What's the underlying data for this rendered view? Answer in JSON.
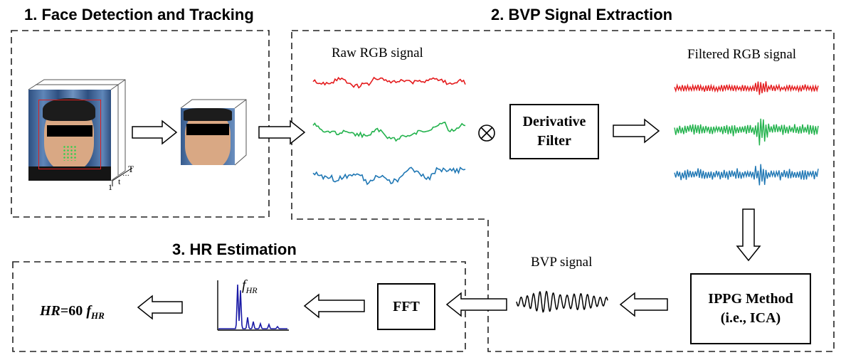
{
  "sections": {
    "face_detection": "1. Face Detection and Tracking",
    "bvp_extraction": "2. BVP Signal Extraction",
    "hr_estimation": "3. HR Estimation"
  },
  "labels": {
    "raw_rgb": "Raw RGB signal",
    "filtered_rgb": "Filtered RGB signal",
    "bvp_signal": "BVP signal",
    "f_hr_main": "f",
    "f_hr_sub": "HR",
    "hr_formula_prefix": "HR",
    "hr_formula_mid": "=60 ",
    "hr_formula_f": "f",
    "hr_formula_sub": "HR",
    "axis_1": "1",
    "axis_t": "t",
    "axis_dots": "···",
    "axis_T": "T"
  },
  "boxes": {
    "derivative_line1": "Derivative",
    "derivative_line2": "Filter",
    "fft": "FFT",
    "ippg_line1": "IPPG Method",
    "ippg_line2": "(i.e., ICA)"
  },
  "colors": {
    "red": "#e41a1c",
    "green": "#22b24c",
    "blue": "#1f77b4",
    "spectrum": "#1a1aa6"
  }
}
